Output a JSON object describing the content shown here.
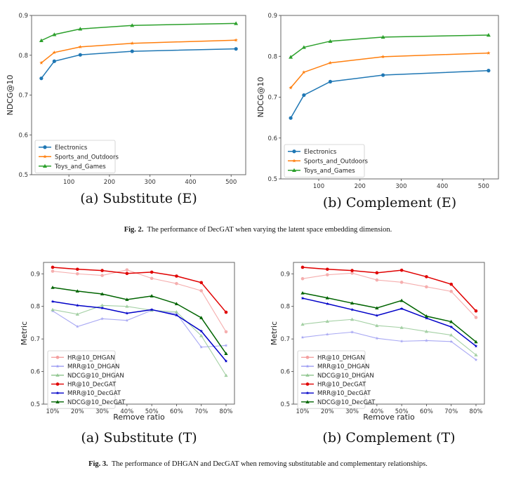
{
  "figure2": {
    "label": "Fig. 2.",
    "caption": "The performance of DecGAT when varying the latent space embedding dimension."
  },
  "figure3": {
    "label": "Fig. 3.",
    "caption": "The performance of DHGAN and DecGAT when removing substitutable and complementary relationships."
  },
  "chart_data": [
    {
      "id": "fig2a",
      "type": "line",
      "title": "(a) Substitute (E)",
      "xlabel": "",
      "ylabel": "NDCG@10",
      "x": [
        32,
        64,
        128,
        256,
        512
      ],
      "xlim": [
        8,
        536
      ],
      "ylim": [
        0.5,
        0.9
      ],
      "xticks": [
        100,
        200,
        300,
        400,
        500
      ],
      "yticks": [
        0.5,
        0.6,
        0.7,
        0.8,
        0.9
      ],
      "ytick_labels": [
        "0.5",
        "0.6",
        "0.7",
        "0.8",
        "0.9"
      ],
      "grid": false,
      "legend": "lower-left",
      "series": [
        {
          "name": "Electronics",
          "color": "#1f77b4",
          "marker": "circle",
          "values": [
            0.742,
            0.785,
            0.801,
            0.81,
            0.816
          ]
        },
        {
          "name": "Sports_and_Outdoors",
          "color": "#ff7f0e",
          "marker": "star",
          "values": [
            0.781,
            0.807,
            0.821,
            0.83,
            0.838
          ]
        },
        {
          "name": "Toys_and_Games",
          "color": "#2ca02c",
          "marker": "triangle",
          "values": [
            0.837,
            0.852,
            0.866,
            0.875,
            0.88
          ]
        }
      ]
    },
    {
      "id": "fig2b",
      "type": "line",
      "title": "(b) Complement (E)",
      "xlabel": "",
      "ylabel": "NDCG@10",
      "x": [
        32,
        64,
        128,
        256,
        512
      ],
      "xlim": [
        8,
        536
      ],
      "ylim": [
        0.5,
        0.9
      ],
      "xticks": [
        100,
        200,
        300,
        400,
        500
      ],
      "yticks": [
        0.5,
        0.6,
        0.7,
        0.8,
        0.9
      ],
      "ytick_labels": [
        "0.5",
        "0.6",
        "0.7",
        "0.8",
        "0.9"
      ],
      "grid": false,
      "legend": "lower-left",
      "series": [
        {
          "name": "Electronics",
          "color": "#1f77b4",
          "marker": "circle",
          "values": [
            0.649,
            0.705,
            0.738,
            0.754,
            0.765
          ]
        },
        {
          "name": "Sports_and_Outdoors",
          "color": "#ff7f0e",
          "marker": "star",
          "values": [
            0.723,
            0.761,
            0.784,
            0.799,
            0.808
          ]
        },
        {
          "name": "Toys_and_Games",
          "color": "#2ca02c",
          "marker": "triangle",
          "values": [
            0.798,
            0.822,
            0.837,
            0.847,
            0.852
          ]
        }
      ]
    },
    {
      "id": "fig3a",
      "type": "line",
      "title": "(a) Substitute (T)",
      "xlabel": "Remove ratio",
      "ylabel": "Metric",
      "x": [
        "10%",
        "20%",
        "30%",
        "40%",
        "50%",
        "60%",
        "70%",
        "80%"
      ],
      "ylim": [
        0.5,
        0.935
      ],
      "yticks": [
        0.5,
        0.6,
        0.7,
        0.8,
        0.9
      ],
      "ytick_labels": [
        "0.5",
        "0.6",
        "0.7",
        "0.8",
        "0.9"
      ],
      "grid": false,
      "legend": "lower-left",
      "series": [
        {
          "name": "HR@10_DHGAN",
          "color": "#f4a0a0",
          "marker": "circle",
          "faded": true,
          "values": [
            0.908,
            0.9,
            0.895,
            0.912,
            0.886,
            0.87,
            0.848,
            0.722
          ]
        },
        {
          "name": "MRR@10_DHGAN",
          "color": "#9a9af2",
          "marker": "star",
          "faded": true,
          "values": [
            0.786,
            0.738,
            0.762,
            0.757,
            0.788,
            0.778,
            0.675,
            0.68
          ]
        },
        {
          "name": "NDCG@10_DHGAN",
          "color": "#95c895",
          "marker": "triangle",
          "faded": true,
          "values": [
            0.79,
            0.776,
            0.803,
            0.8,
            0.788,
            0.783,
            0.71,
            0.588
          ]
        },
        {
          "name": "HR@10_DecGAT",
          "color": "#e00000",
          "marker": "circle",
          "faded": false,
          "values": [
            0.92,
            0.914,
            0.91,
            0.901,
            0.905,
            0.893,
            0.873,
            0.782
          ]
        },
        {
          "name": "MRR@10_DecGAT",
          "color": "#0000c8",
          "marker": "star",
          "faded": false,
          "values": [
            0.815,
            0.803,
            0.795,
            0.779,
            0.79,
            0.773,
            0.724,
            0.632
          ]
        },
        {
          "name": "NDCG@10_DecGAT",
          "color": "#006400",
          "marker": "triangle",
          "faded": false,
          "values": [
            0.858,
            0.847,
            0.838,
            0.821,
            0.832,
            0.808,
            0.765,
            0.655
          ]
        }
      ]
    },
    {
      "id": "fig3b",
      "type": "line",
      "title": "(b) Complement (T)",
      "xlabel": "Remove ratio",
      "ylabel": "Metric",
      "x": [
        "10%",
        "20%",
        "30%",
        "40%",
        "50%",
        "60%",
        "70%",
        "80%"
      ],
      "ylim": [
        0.5,
        0.935
      ],
      "yticks": [
        0.5,
        0.6,
        0.7,
        0.8,
        0.9
      ],
      "ytick_labels": [
        "0.5",
        "0.6",
        "0.7",
        "0.8",
        "0.9"
      ],
      "grid": false,
      "legend": "lower-left",
      "series": [
        {
          "name": "HR@10_DHGAN",
          "color": "#f4a0a0",
          "marker": "circle",
          "faded": true,
          "values": [
            0.885,
            0.897,
            0.902,
            0.881,
            0.874,
            0.86,
            0.846,
            0.766
          ]
        },
        {
          "name": "MRR@10_DHGAN",
          "color": "#9a9af2",
          "marker": "star",
          "faded": true,
          "values": [
            0.705,
            0.714,
            0.721,
            0.702,
            0.693,
            0.695,
            0.692,
            0.636
          ]
        },
        {
          "name": "NDCG@10_DHGAN",
          "color": "#95c895",
          "marker": "triangle",
          "faded": true,
          "values": [
            0.745,
            0.754,
            0.76,
            0.741,
            0.735,
            0.723,
            0.712,
            0.651
          ]
        },
        {
          "name": "HR@10_DecGAT",
          "color": "#e00000",
          "marker": "circle",
          "faded": false,
          "values": [
            0.92,
            0.914,
            0.91,
            0.903,
            0.911,
            0.891,
            0.868,
            0.786
          ]
        },
        {
          "name": "MRR@10_DecGAT",
          "color": "#0000c8",
          "marker": "star",
          "faded": false,
          "values": [
            0.825,
            0.808,
            0.79,
            0.772,
            0.793,
            0.764,
            0.737,
            0.678
          ]
        },
        {
          "name": "NDCG@10_DecGAT",
          "color": "#006400",
          "marker": "triangle",
          "faded": false,
          "values": [
            0.841,
            0.826,
            0.81,
            0.795,
            0.818,
            0.77,
            0.753,
            0.691
          ]
        }
      ]
    }
  ]
}
